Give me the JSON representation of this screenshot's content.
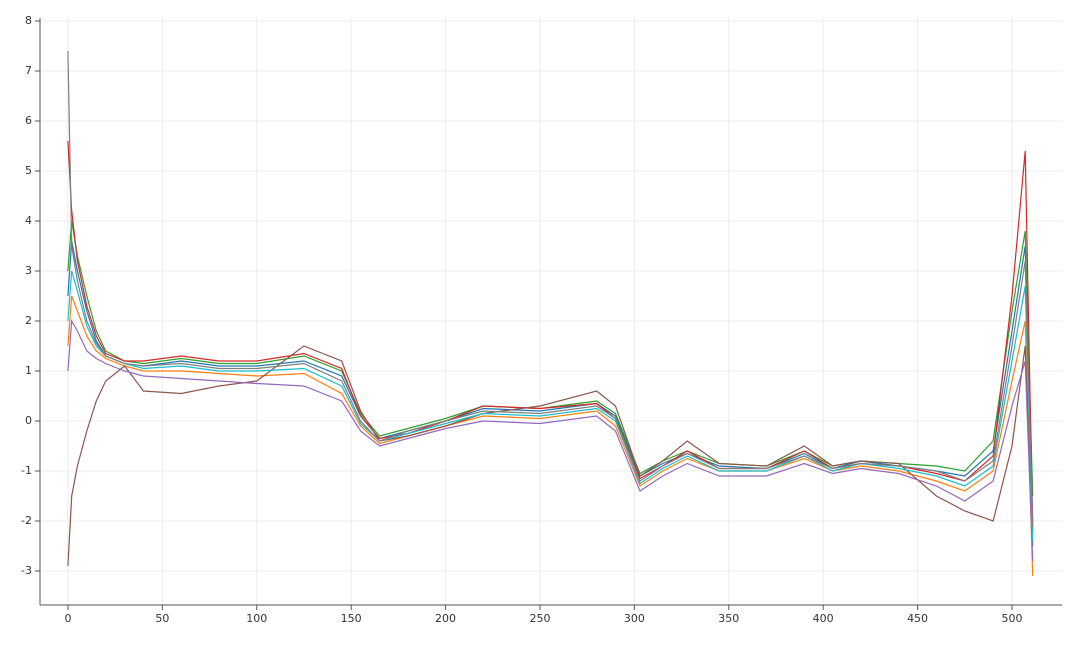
{
  "chart_data": {
    "type": "line",
    "x": [
      0,
      2,
      5,
      10,
      15,
      20,
      30,
      40,
      60,
      80,
      100,
      125,
      145,
      155,
      165,
      180,
      200,
      220,
      250,
      280,
      290,
      303,
      315,
      328,
      345,
      370,
      390,
      405,
      420,
      440,
      460,
      475,
      490,
      500,
      507,
      511
    ],
    "series": [
      {
        "color": "#1f77b4",
        "values": [
          2.5,
          3.6,
          3.0,
          2.2,
          1.6,
          1.3,
          1.15,
          1.1,
          1.2,
          1.1,
          1.1,
          1.2,
          0.9,
          0.1,
          -0.35,
          -0.2,
          0.0,
          0.25,
          0.2,
          0.35,
          0.1,
          -1.1,
          -0.85,
          -0.65,
          -0.9,
          -0.95,
          -0.65,
          -0.95,
          -0.8,
          -0.9,
          -1.0,
          -1.1,
          -0.6,
          1.8,
          3.5,
          -2.0
        ]
      },
      {
        "color": "#ff7f0e",
        "values": [
          1.5,
          2.5,
          2.2,
          1.7,
          1.4,
          1.25,
          1.1,
          1.0,
          1.0,
          0.95,
          0.9,
          0.95,
          0.55,
          -0.1,
          -0.45,
          -0.3,
          -0.1,
          0.1,
          0.05,
          0.2,
          -0.1,
          -1.3,
          -1.0,
          -0.75,
          -1.0,
          -1.0,
          -0.75,
          -1.0,
          -0.9,
          -1.0,
          -1.2,
          -1.4,
          -1.0,
          0.8,
          2.0,
          -3.1
        ]
      },
      {
        "color": "#2ca02c",
        "values": [
          3.0,
          4.0,
          3.3,
          2.5,
          1.8,
          1.4,
          1.2,
          1.15,
          1.25,
          1.15,
          1.15,
          1.3,
          1.0,
          0.15,
          -0.3,
          -0.15,
          0.05,
          0.3,
          0.25,
          0.4,
          0.15,
          -1.05,
          -0.8,
          -0.6,
          -0.85,
          -0.9,
          -0.6,
          -0.9,
          -0.8,
          -0.85,
          -0.9,
          -1.0,
          -0.4,
          2.2,
          3.8,
          -1.5
        ]
      },
      {
        "color": "#d62728",
        "values": [
          5.6,
          4.2,
          3.2,
          2.3,
          1.7,
          1.35,
          1.2,
          1.2,
          1.3,
          1.2,
          1.2,
          1.35,
          1.05,
          0.1,
          -0.35,
          -0.25,
          0.0,
          0.3,
          0.25,
          0.35,
          0.05,
          -1.15,
          -0.9,
          -0.6,
          -0.95,
          -0.95,
          -0.6,
          -0.95,
          -0.85,
          -0.9,
          -1.05,
          -1.2,
          -0.7,
          2.5,
          5.4,
          -2.2
        ]
      },
      {
        "color": "#8c564b",
        "values": [
          -2.9,
          -1.5,
          -0.9,
          -0.2,
          0.4,
          0.8,
          1.1,
          0.6,
          0.55,
          0.7,
          0.8,
          1.5,
          1.2,
          0.2,
          -0.4,
          -0.3,
          -0.1,
          0.15,
          0.3,
          0.6,
          0.3,
          -1.1,
          -0.8,
          -0.4,
          -0.85,
          -0.9,
          -0.5,
          -0.9,
          -0.8,
          -0.85,
          -1.5,
          -1.8,
          -2.0,
          -0.5,
          1.5,
          -2.5
        ]
      },
      {
        "color": "#9467bd",
        "values": [
          1.0,
          2.0,
          1.8,
          1.4,
          1.25,
          1.15,
          1.0,
          0.9,
          0.85,
          0.8,
          0.75,
          0.7,
          0.4,
          -0.2,
          -0.5,
          -0.35,
          -0.15,
          0.0,
          -0.05,
          0.1,
          -0.2,
          -1.4,
          -1.1,
          -0.85,
          -1.1,
          -1.1,
          -0.85,
          -1.05,
          -0.95,
          -1.05,
          -1.3,
          -1.6,
          -1.2,
          0.3,
          1.2,
          -2.8
        ]
      },
      {
        "color": "#17becf",
        "values": [
          2.0,
          3.0,
          2.6,
          1.9,
          1.5,
          1.3,
          1.15,
          1.05,
          1.1,
          1.0,
          1.0,
          1.05,
          0.7,
          -0.05,
          -0.4,
          -0.25,
          -0.05,
          0.15,
          0.1,
          0.25,
          0.0,
          -1.25,
          -0.95,
          -0.7,
          -1.0,
          -1.0,
          -0.7,
          -1.0,
          -0.85,
          -0.95,
          -1.1,
          -1.3,
          -0.9,
          1.2,
          2.7,
          -2.4
        ]
      },
      {
        "color": "#7f7f7f",
        "values": [
          7.4,
          3.5,
          2.8,
          2.0,
          1.55,
          1.3,
          1.15,
          1.1,
          1.15,
          1.05,
          1.05,
          1.15,
          0.8,
          0.0,
          -0.4,
          -0.2,
          0.0,
          0.2,
          0.15,
          0.3,
          0.05,
          -1.2,
          -0.9,
          -0.65,
          -0.95,
          -0.95,
          -0.7,
          -0.95,
          -0.85,
          -0.9,
          -1.0,
          -1.2,
          -0.8,
          1.5,
          3.2,
          -2.1
        ]
      }
    ],
    "xlim": [
      -14.8,
      526.5
    ],
    "ylim": [
      -3.68,
      8.06
    ],
    "xticks": [
      0,
      50,
      100,
      150,
      200,
      250,
      300,
      350,
      400,
      450,
      500
    ],
    "yticks": [
      -3,
      -2,
      -1,
      0,
      1,
      2,
      3,
      4,
      5,
      6,
      7,
      8
    ],
    "grid": true
  }
}
